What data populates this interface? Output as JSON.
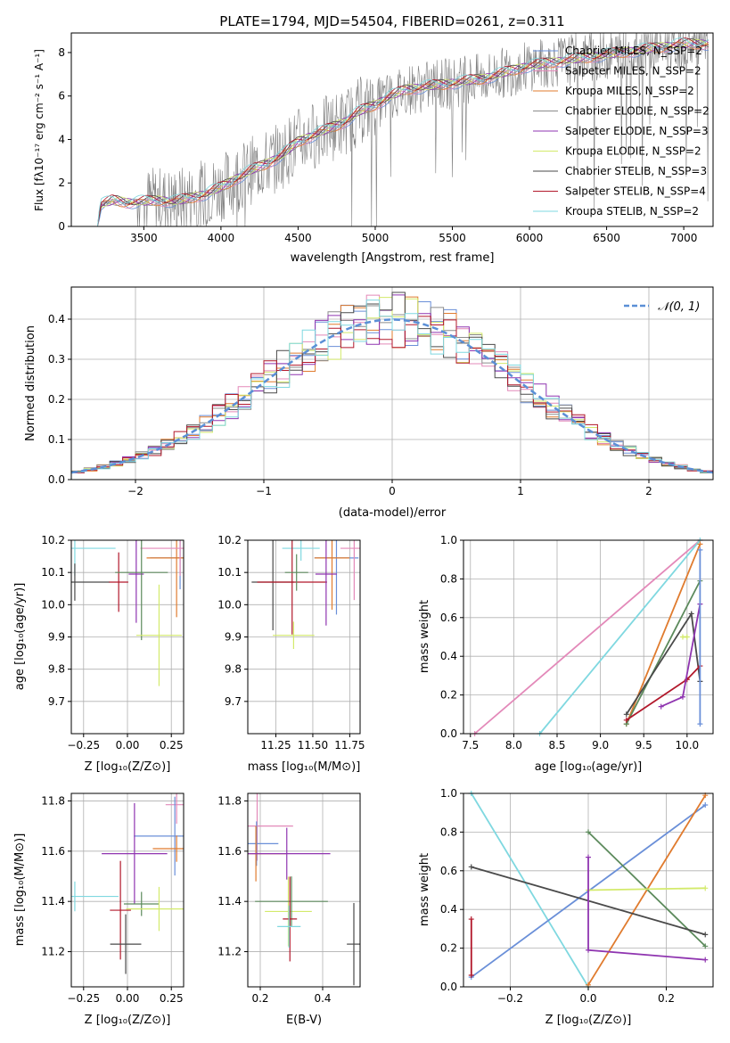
{
  "colors": {
    "cM": "#6a8fd8",
    "sM": "#e389b9",
    "kM": "#e07b2e",
    "cE": "#8c8c8c",
    "sE": "#8f35b0",
    "kE": "#d3ea6b",
    "cS": "#4a4a4a",
    "sS": "#b2182b",
    "kS": "#7fd8e0",
    "green": "#5c8a5c",
    "norm": "#5b8fd6"
  },
  "chart_data": [
    {
      "type": "line",
      "title": "PLATE=1794, MJD=54504, FIBERID=0261, z=0.311",
      "xlabel": "wavelength [Angstrom, rest frame]",
      "ylabel": "Flux [fλ10⁻¹⁷ erg cm⁻² s⁻¹ A⁻¹]",
      "xlim": [
        3030,
        7190
      ],
      "ylim": [
        0,
        8.9
      ],
      "xticks": [
        "3500",
        "4000",
        "4500",
        "5000",
        "5500",
        "6000",
        "6500",
        "7000"
      ],
      "yticks": [
        "0",
        "2",
        "4",
        "6",
        "8"
      ],
      "legend_position": "upper right",
      "legend": [
        "Chabrier MILES, N_SSP=2",
        "Salpeter MILES, N_SSP=2",
        "Kroupa MILES, N_SSP=2",
        "Chabrier ELODIE, N_SSP=2",
        "Salpeter ELODIE, N_SSP=3",
        "Kroupa ELODIE, N_SSP=2",
        "Chabrier STELIB, N_SSP=3",
        "Salpeter STELIB, N_SSP=4",
        "Kroupa STELIB, N_SSP=2"
      ],
      "model_x": [
        3200,
        3220,
        3300,
        3400,
        3500,
        3600,
        3700,
        3800,
        3900,
        4000,
        4100,
        4200,
        4300,
        4400,
        4500,
        4600,
        4700,
        4800,
        4900,
        5000,
        5100,
        5200,
        5300,
        5400,
        5500,
        5600,
        5700,
        5800,
        5900,
        6000,
        6100,
        6200,
        6300,
        6400,
        6500,
        6600,
        6700,
        6800,
        6900,
        7000,
        7100
      ],
      "model_y": [
        0,
        1.0,
        1.2,
        1.1,
        1.15,
        1.2,
        1.15,
        1.3,
        1.5,
        1.8,
        2.2,
        2.6,
        2.9,
        3.3,
        3.9,
        4.2,
        4.5,
        4.8,
        5.3,
        5.6,
        6.0,
        6.3,
        6.4,
        6.5,
        6.6,
        6.7,
        6.8,
        7.0,
        7.2,
        7.4,
        7.5,
        7.6,
        7.7,
        7.8,
        7.9,
        8.0,
        8.1,
        8.2,
        8.3,
        8.4,
        8.4
      ]
    },
    {
      "type": "bar",
      "xlabel": "(data-model)/error",
      "ylabel": "Normed distribution",
      "xlim": [
        -2.5,
        2.5
      ],
      "ylim": [
        0,
        0.48
      ],
      "xticks": [
        "−2",
        "−1",
        "0",
        "1",
        "2"
      ],
      "yticks": [
        "0.0",
        "0.1",
        "0.2",
        "0.3",
        "0.4"
      ],
      "legend_position": "upper right",
      "legend": [
        "𝒩(0, 1)"
      ]
    },
    {
      "type": "scatter",
      "xlabel": "Z [log₁₀(Z/Z⊙)]",
      "ylabel": "age  [log₁₀(age/yr)]",
      "xlim": [
        -0.32,
        0.32
      ],
      "ylim": [
        9.6,
        10.2
      ],
      "xticks": [
        "−0.25",
        "0.00",
        "0.25"
      ],
      "yticks": [
        "9.7",
        "9.8",
        "9.9",
        "10.0",
        "10.1",
        "10.2"
      ],
      "points": [
        {
          "c": "cM",
          "x": 0.3,
          "y": 10.145
        },
        {
          "c": "kM",
          "x": 0.28,
          "y": 10.145
        },
        {
          "c": "sM",
          "x": 0.3,
          "y": 10.175
        },
        {
          "c": "kS",
          "x": -0.3,
          "y": 10.175
        },
        {
          "c": "cS",
          "x": -0.3,
          "y": 10.07
        },
        {
          "c": "sS",
          "x": -0.05,
          "y": 10.07
        },
        {
          "c": "sE",
          "x": 0.05,
          "y": 10.095
        },
        {
          "c": "green",
          "x": 0.08,
          "y": 10.1
        },
        {
          "c": "kE",
          "x": 0.18,
          "y": 9.905
        }
      ]
    },
    {
      "type": "scatter",
      "xlabel": "mass [log₁₀(M/M⊙)]",
      "ylabel": "",
      "xlim": [
        11.06,
        11.82
      ],
      "ylim": [
        9.6,
        10.2
      ],
      "xticks": [
        "11.25",
        "11.50",
        "11.75"
      ],
      "yticks": [
        "9.7",
        "9.8",
        "9.9",
        "10.0",
        "10.1",
        "10.2"
      ],
      "points": [
        {
          "c": "cM",
          "x": 11.66,
          "y": 10.145
        },
        {
          "c": "kM",
          "x": 11.63,
          "y": 10.145
        },
        {
          "c": "sM",
          "x": 11.78,
          "y": 10.175
        },
        {
          "c": "kS",
          "x": 11.42,
          "y": 10.175
        },
        {
          "c": "cS",
          "x": 11.23,
          "y": 10.07
        },
        {
          "c": "sS",
          "x": 11.36,
          "y": 10.07
        },
        {
          "c": "sE",
          "x": 11.59,
          "y": 10.095
        },
        {
          "c": "green",
          "x": 11.39,
          "y": 10.1
        },
        {
          "c": "kE",
          "x": 11.37,
          "y": 9.905
        }
      ]
    },
    {
      "type": "line",
      "xlabel": "age  [log₁₀(age/yr)]",
      "ylabel": "mass weight",
      "xlim": [
        7.42,
        10.3
      ],
      "ylim": [
        0,
        1
      ],
      "xticks": [
        "7.5",
        "8.0",
        "8.5",
        "9.0",
        "9.5",
        "10.0"
      ],
      "yticks": [
        "0.0",
        "0.2",
        "0.4",
        "0.6",
        "0.8",
        "1.0"
      ]
    },
    {
      "type": "scatter",
      "xlabel": "Z [log₁₀(Z/Z⊙)]",
      "ylabel": "mass [log₁₀(M/M⊙)]",
      "xlim": [
        -0.32,
        0.32
      ],
      "ylim": [
        11.06,
        11.83
      ],
      "xticks": [
        "−0.25",
        "0.00",
        "0.25"
      ],
      "yticks": [
        "11.2",
        "11.4",
        "11.6",
        "11.8"
      ],
      "points": [
        {
          "c": "sM",
          "x": 0.28,
          "y": 11.785
        },
        {
          "c": "cM",
          "x": 0.27,
          "y": 11.66
        },
        {
          "c": "kM",
          "x": 0.28,
          "y": 11.61
        },
        {
          "c": "sE",
          "x": 0.04,
          "y": 11.59
        },
        {
          "c": "kS",
          "x": -0.3,
          "y": 11.42
        },
        {
          "c": "green",
          "x": 0.08,
          "y": 11.39
        },
        {
          "c": "sS",
          "x": -0.04,
          "y": 11.365
        },
        {
          "c": "kE",
          "x": 0.18,
          "y": 11.37
        },
        {
          "c": "cS",
          "x": -0.01,
          "y": 11.23
        }
      ]
    },
    {
      "type": "scatter",
      "xlabel": "E(B-V)",
      "ylabel": "",
      "xlim": [
        0.16,
        0.52
      ],
      "ylim": [
        11.06,
        11.83
      ],
      "xticks": [
        "0.2",
        "0.4"
      ],
      "yticks": [
        "11.2",
        "11.4",
        "11.6",
        "11.8"
      ],
      "points": [
        {
          "c": "sM",
          "x": 0.19,
          "y": 11.7
        },
        {
          "c": "cM",
          "x": 0.188,
          "y": 11.63
        },
        {
          "c": "kM",
          "x": 0.186,
          "y": 11.59
        },
        {
          "c": "sE",
          "x": 0.285,
          "y": 11.59
        },
        {
          "c": "kE",
          "x": 0.29,
          "y": 11.36
        },
        {
          "c": "green",
          "x": 0.3,
          "y": 11.4
        },
        {
          "c": "sS",
          "x": 0.295,
          "y": 11.33
        },
        {
          "c": "kS",
          "x": 0.292,
          "y": 11.3
        },
        {
          "c": "cS",
          "x": 0.5,
          "y": 11.23
        }
      ]
    },
    {
      "type": "line",
      "xlabel": "Z [log₁₀(Z/Z⊙)]",
      "ylabel": "mass weight",
      "xlim": [
        -0.32,
        0.32
      ],
      "ylim": [
        0,
        1
      ],
      "xticks": [
        "−0.2",
        "0.0",
        "0.2"
      ],
      "yticks": [
        "0.0",
        "0.2",
        "0.4",
        "0.6",
        "0.8",
        "1.0"
      ]
    }
  ]
}
